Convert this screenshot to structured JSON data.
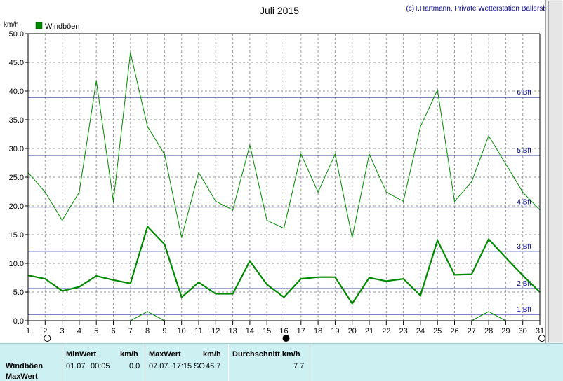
{
  "header": {
    "title": "Juli 2015",
    "credit": "(c)T.Hartmann, Private Wetterstation Ballersbach"
  },
  "legend": {
    "label": "Windböen",
    "color": "#008a00"
  },
  "colors": {
    "series": "#008a00",
    "beaufort": "#00008b",
    "grid": "#9a9a9a",
    "panel_bg": "#cdf1f3"
  },
  "chart_data": {
    "type": "line",
    "title": "Juli 2015",
    "ylabel": "km/h",
    "xlabel": "",
    "x": [
      1,
      2,
      3,
      4,
      5,
      6,
      7,
      8,
      9,
      10,
      11,
      12,
      13,
      14,
      15,
      16,
      17,
      18,
      19,
      20,
      21,
      22,
      23,
      24,
      25,
      26,
      27,
      28,
      29,
      30,
      31
    ],
    "xlim": [
      1,
      31
    ],
    "ylim": [
      0,
      50
    ],
    "yticks": [
      "0.0",
      "5.0",
      "10.0",
      "15.0",
      "20.0",
      "25.0",
      "30.0",
      "35.0",
      "40.0",
      "45.0",
      "50.0"
    ],
    "grid": true,
    "legend_position": "top-left",
    "series": [
      {
        "name": "Windböen",
        "role": "max",
        "values": [
          25.8,
          22.4,
          17.5,
          22.4,
          41.8,
          20.8,
          46.7,
          33.8,
          29.0,
          14.5,
          25.8,
          20.8,
          19.3,
          30.6,
          17.5,
          16.1,
          29.0,
          22.4,
          29.0,
          14.5,
          29.0,
          22.4,
          20.8,
          33.8,
          40.2,
          20.8,
          24.2,
          32.2,
          27.3,
          22.4,
          19.3
        ]
      },
      {
        "role": "mean",
        "values": [
          7.9,
          7.3,
          5.2,
          5.9,
          7.8,
          7.1,
          6.5,
          16.4,
          13.3,
          4.1,
          6.7,
          4.7,
          4.7,
          10.4,
          6.3,
          4.1,
          7.3,
          7.6,
          7.6,
          3.0,
          7.5,
          6.9,
          7.3,
          4.4,
          14.0,
          8.0,
          8.1,
          14.2,
          11.0,
          7.9,
          5.0
        ]
      },
      {
        "role": "min",
        "segments": [
          [
            [
              7,
              0.0
            ],
            [
              8,
              1.6
            ],
            [
              9,
              0.0
            ]
          ],
          [
            [
              27,
              0.0
            ],
            [
              28,
              1.6
            ],
            [
              29,
              0.0
            ]
          ]
        ]
      }
    ],
    "beaufort": [
      {
        "label": "1 Bft",
        "value": 1.1
      },
      {
        "label": "2 Bft",
        "value": 5.6
      },
      {
        "label": "3 Bft",
        "value": 12.1
      },
      {
        "label": "4 Bft",
        "value": 19.8
      },
      {
        "label": "5 Bft",
        "value": 28.8
      },
      {
        "label": "6 Bft",
        "value": 38.9
      }
    ],
    "moon_phases": [
      {
        "day": 2,
        "phase": "full"
      },
      {
        "day": 16,
        "phase": "new"
      },
      {
        "day": 31,
        "phase": "full"
      }
    ]
  },
  "stats": {
    "row_label": "Windböen",
    "row2_label": "MaxWert",
    "min_header": "MinWert",
    "min_unit": "km/h",
    "min_date": "01.07.",
    "min_time": "00:05",
    "min_value": "0.0",
    "max_header": "MaxWert",
    "max_unit": "km/h",
    "max_datetime": "07.07.  17:15",
    "max_dir": "SO",
    "max_value": "46.7",
    "avg_header": "Durchschnitt km/h",
    "avg_value": "7.7"
  }
}
